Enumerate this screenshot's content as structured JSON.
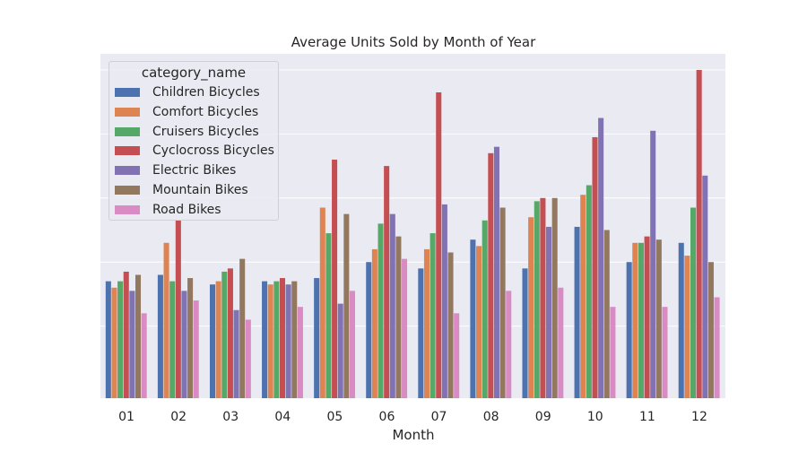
{
  "chart_data": {
    "type": "bar",
    "title": "Average Units Sold by Month of Year",
    "xlabel": "Month",
    "ylabel": "",
    "ylim": [
      0,
      1.0
    ],
    "grid": true,
    "legend": {
      "title": "category_name",
      "placement": "top-left"
    },
    "categories": [
      "01",
      "02",
      "03",
      "04",
      "05",
      "06",
      "07",
      "08",
      "09",
      "10",
      "11",
      "12"
    ],
    "series": [
      {
        "name": "Children Bicycles",
        "color": "#4c72b0",
        "values": [
          0.34,
          0.36,
          0.33,
          0.34,
          0.35,
          0.4,
          0.38,
          0.47,
          0.38,
          0.51,
          0.4,
          0.46
        ]
      },
      {
        "name": "Comfort Bicycles",
        "color": "#dd8452",
        "values": [
          0.32,
          0.46,
          0.34,
          0.33,
          0.57,
          0.44,
          0.44,
          0.45,
          0.54,
          0.61,
          0.46,
          0.42
        ]
      },
      {
        "name": "Cruisers Bicycles",
        "color": "#55a868",
        "values": [
          0.34,
          0.34,
          0.37,
          0.34,
          0.49,
          0.52,
          0.49,
          0.53,
          0.59,
          0.64,
          0.46,
          0.57
        ]
      },
      {
        "name": "Cyclocross Bicycles",
        "color": "#c44e52",
        "values": [
          0.37,
          0.53,
          0.38,
          0.35,
          0.72,
          0.7,
          0.93,
          0.74,
          0.6,
          0.79,
          0.48,
          1.0
        ]
      },
      {
        "name": "Electric Bikes",
        "color": "#8172b3",
        "values": [
          0.31,
          0.31,
          0.25,
          0.33,
          0.27,
          0.55,
          0.58,
          0.76,
          0.51,
          0.85,
          0.81,
          0.67
        ]
      },
      {
        "name": "Mountain Bikes",
        "color": "#937860",
        "values": [
          0.36,
          0.35,
          0.41,
          0.34,
          0.55,
          0.48,
          0.43,
          0.57,
          0.6,
          0.5,
          0.47,
          0.4
        ]
      },
      {
        "name": "Road Bikes",
        "color": "#da8bc3",
        "values": [
          0.24,
          0.28,
          0.22,
          0.26,
          0.31,
          0.41,
          0.24,
          0.31,
          0.32,
          0.26,
          0.26,
          0.29
        ]
      }
    ]
  }
}
